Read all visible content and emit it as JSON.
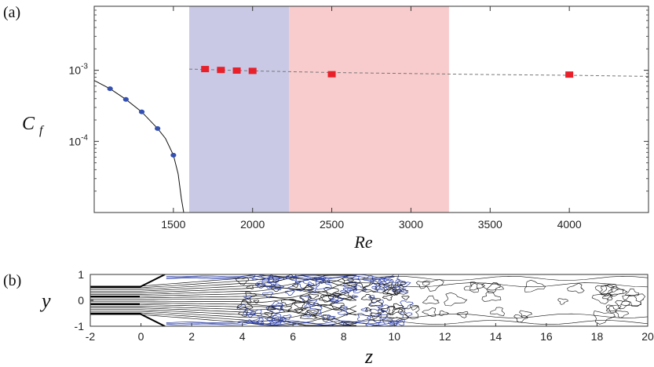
{
  "chart_data": [
    {
      "panel": "(a)",
      "type": "scatter",
      "title": "",
      "xlabel": "Re",
      "ylabel": "C",
      "ylabel_sub": "f",
      "xlim": [
        1000,
        4500
      ],
      "ylim_log10": [
        -5.0,
        -2.1
      ],
      "y_scale": "log",
      "x_ticks": [
        1500,
        2000,
        2500,
        3000,
        3500,
        4000
      ],
      "y_ticks": [
        {
          "value": 0.001,
          "base": "10",
          "exp": "-3"
        },
        {
          "value": 0.0001,
          "base": "10",
          "exp": "-4"
        }
      ],
      "shaded_regions": [
        {
          "x": [
            1600,
            2230
          ],
          "color": "#c9c9e6"
        },
        {
          "x": [
            2230,
            3240
          ],
          "color": "#f8cbcc"
        }
      ],
      "series": [
        {
          "marker": "circle",
          "color": "#3451b2",
          "points": [
            [
              1100,
              0.00055
            ],
            [
              1200,
              0.00039
            ],
            [
              1300,
              0.00026
            ],
            [
              1400,
              0.000152
            ],
            [
              1500,
              6.4e-05
            ]
          ]
        },
        {
          "marker": "square",
          "color": "#e8202a",
          "points": [
            [
              1700,
              0.00104
            ],
            [
              1800,
              0.00101
            ],
            [
              1900,
              0.00099
            ],
            [
              2000,
              0.00098
            ],
            [
              2500,
              0.00088
            ],
            [
              4000,
              0.00087
            ]
          ]
        }
      ],
      "laminar_curve": [
        [
          1000,
          0.00072
        ],
        [
          1100,
          0.00055
        ],
        [
          1200,
          0.00039
        ],
        [
          1300,
          0.00026
        ],
        [
          1400,
          0.000152
        ],
        [
          1450,
          0.00011
        ],
        [
          1500,
          6.4e-05
        ],
        [
          1530,
          3.5e-05
        ],
        [
          1550,
          1.6e-05
        ],
        [
          1565,
          9e-06
        ]
      ],
      "turbulent_fit": [
        [
          1600,
          0.00104
        ],
        [
          2000,
          0.00098
        ],
        [
          2500,
          0.00093
        ],
        [
          3000,
          0.0009
        ],
        [
          3500,
          0.00087
        ],
        [
          4000,
          0.00085
        ],
        [
          4500,
          0.00082
        ]
      ]
    },
    {
      "panel": "(b)",
      "type": "contour",
      "xlabel": "z",
      "ylabel": "y",
      "xlim": [
        -2,
        20
      ],
      "ylim": [
        -1,
        1
      ],
      "x_ticks": [
        -2,
        0,
        2,
        4,
        6,
        8,
        10,
        12,
        14,
        16,
        18,
        20
      ],
      "y_ticks": [
        1,
        0,
        -1
      ],
      "colors": {
        "positive": "#111111",
        "negative": "#2b3ea8"
      }
    }
  ]
}
